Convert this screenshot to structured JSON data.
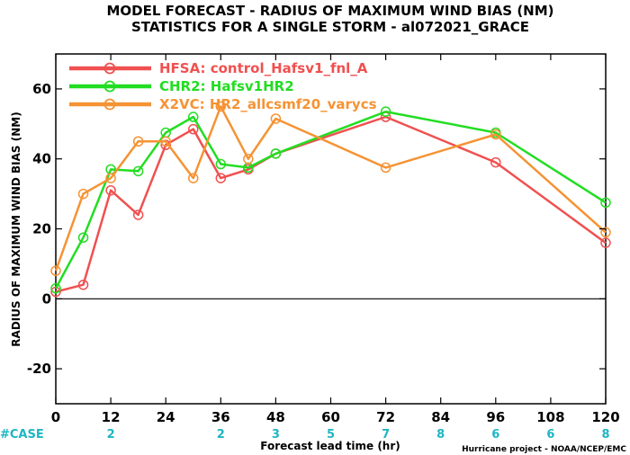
{
  "chart_data": {
    "type": "line",
    "title": "MODEL FORECAST - RADIUS OF MAXIMUM WIND BIAS (NM)",
    "subtitle": "STATISTICS FOR A SINGLE STORM - al072021_GRACE",
    "xlabel": "Forecast lead time (hr)",
    "ylabel": "RADIUS OF MAXIMUM WIND BIAS (NM)",
    "xlim": [
      0,
      120
    ],
    "ylim": [
      -30,
      70
    ],
    "xticks": [
      0,
      12,
      24,
      36,
      48,
      60,
      72,
      84,
      96,
      108,
      120
    ],
    "yticks": [
      -20,
      0,
      20,
      40,
      60
    ],
    "zero_line": true,
    "grid": false,
    "legend_position": "top-left",
    "case_label": "#CASE",
    "case_counts": {
      "x": [
        12,
        36,
        48,
        60,
        72,
        84,
        96,
        108,
        120
      ],
      "labels": [
        "2",
        "2",
        "3",
        "5",
        "7",
        "8",
        "6",
        "6",
        "8"
      ]
    },
    "series": [
      {
        "name": "HFSA: control_Hafsv1_fnl_A",
        "color": "#f05050",
        "x": [
          0,
          6,
          12,
          18,
          24,
          30,
          36,
          42,
          48,
          72,
          96,
          120
        ],
        "y": [
          2,
          4,
          31,
          24,
          44,
          48.5,
          34.5,
          37,
          41.5,
          52,
          39,
          16
        ]
      },
      {
        "name": "CHR2: Hafsv1HR2",
        "color": "#22dd22",
        "x": [
          0,
          6,
          12,
          18,
          24,
          30,
          36,
          42,
          48,
          72,
          96,
          120
        ],
        "y": [
          3,
          17.5,
          37,
          36.5,
          47.5,
          52,
          38.5,
          37.5,
          41.5,
          53.5,
          47.5,
          27.5
        ]
      },
      {
        "name": "X2VC: HR2_allcsmf20_varycs",
        "color": "#f59334",
        "x": [
          0,
          6,
          12,
          18,
          24,
          30,
          36,
          42,
          48,
          72,
          96,
          120
        ],
        "y": [
          8,
          30,
          34.5,
          45,
          45,
          34.5,
          55,
          40,
          51.5,
          37.5,
          47,
          19
        ]
      }
    ],
    "credit": "Hurricane project - NOAA/NCEP/EMC"
  }
}
